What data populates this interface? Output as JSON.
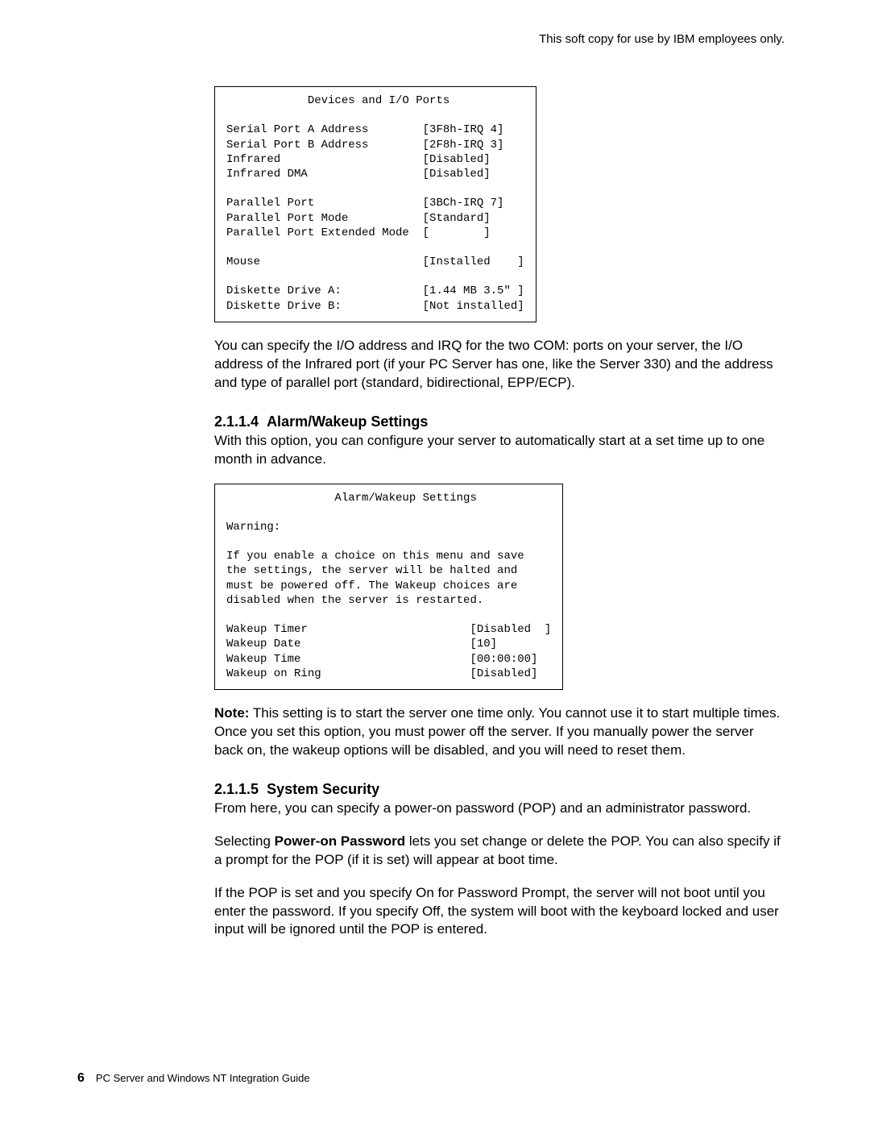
{
  "header_note": "This soft copy for use by IBM employees only.",
  "devices_box": {
    "title": "Devices and I/O Ports",
    "rows": [
      {
        "label": "Serial Port A Address",
        "value": "[3F8h-IRQ 4]"
      },
      {
        "label": "Serial Port B Address",
        "value": "[2F8h-IRQ 3]"
      },
      {
        "label": "Infrared",
        "value": "[Disabled]"
      },
      {
        "label": "Infrared DMA",
        "value": "[Disabled]"
      }
    ],
    "rows2": [
      {
        "label": "Parallel Port",
        "value": "[3BCh-IRQ 7]"
      },
      {
        "label": "Parallel Port Mode",
        "value": "[Standard]"
      },
      {
        "label": "Parallel Port Extended Mode",
        "value": "[        ]"
      }
    ],
    "rows3": [
      {
        "label": "Mouse",
        "value": "[Installed    ]"
      }
    ],
    "rows4": [
      {
        "label": "Diskette Drive A:",
        "value": "[1.44 MB 3.5″ ]"
      },
      {
        "label": "Diskette Drive B:",
        "value": "[Not installed]"
      }
    ]
  },
  "para1": "You can specify the I/O address and IRQ for the two COM: ports on your server, the I/O address of the Infrared port (if your PC Server has one, like the Server 330) and the address and type of parallel port (standard, bidirectional, EPP/ECP).",
  "section_alarm": {
    "number": "2.1.1.4",
    "title": "Alarm/Wakeup Settings",
    "intro": "With this option, you can configure your server to automatically start at a set time up to one month in advance."
  },
  "alarm_box": {
    "title": "Alarm/Wakeup Settings",
    "warning_label": "Warning:",
    "warning_lines": [
      "If you enable a choice on this menu and save",
      "the settings, the server will be halted and",
      "must be powered off. The Wakeup choices are",
      "disabled when the server is restarted."
    ],
    "rows": [
      {
        "label": "Wakeup Timer",
        "value": "[Disabled  ]"
      },
      {
        "label": "Wakeup Date",
        "value": "[10]"
      },
      {
        "label": "Wakeup Time",
        "value": "[00:00:00]"
      },
      {
        "label": "Wakeup on Ring",
        "value": "[Disabled]"
      }
    ]
  },
  "note_label": "Note:",
  "note_text": " This setting is to start the server one time only.  You cannot use it to start multiple times.  Once you set this option, you must power off the server.  If you manually power the server back on, the wakeup options will be disabled, and you will need to reset them.",
  "section_security": {
    "number": "2.1.1.5",
    "title": "System Security",
    "para1": "From here, you can specify a power-on password (POP) and an administrator password.",
    "para2_pre": "Selecting ",
    "para2_bold": "Power-on Password",
    "para2_post": " lets you set change or delete the POP.  You can also specify if a prompt for the POP (if it is set) will appear at boot time.",
    "para3": "If the POP is set and you specify On for Password Prompt, the server will not boot until you enter the password.  If you specify Off, the system will boot with the keyboard locked and user input will be ignored until the POP is entered."
  },
  "footer": {
    "page": "6",
    "title": "PC Server and Windows NT Integration Guide"
  }
}
